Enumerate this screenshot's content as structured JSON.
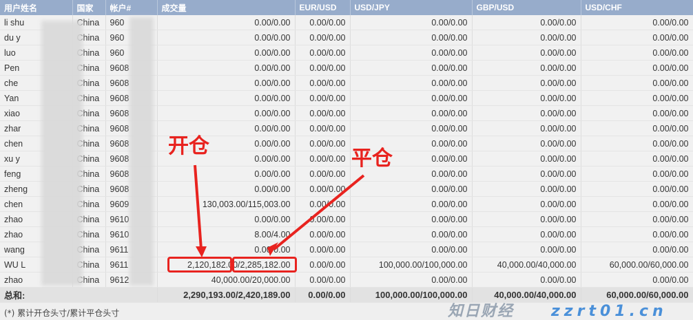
{
  "headers": [
    "用户姓名",
    "国家",
    "帐户#",
    "成交量",
    "EUR/USD",
    "USD/JPY",
    "GBP/USD",
    "USD/CHF"
  ],
  "rows": [
    [
      "li shu",
      "China",
      "960",
      "0.00/0.00",
      "0.00/0.00",
      "0.00/0.00",
      "0.00/0.00",
      "0.00/0.00"
    ],
    [
      "du y",
      "China",
      "960",
      "0.00/0.00",
      "0.00/0.00",
      "0.00/0.00",
      "0.00/0.00",
      "0.00/0.00"
    ],
    [
      "luo",
      "China",
      "960",
      "0.00/0.00",
      "0.00/0.00",
      "0.00/0.00",
      "0.00/0.00",
      "0.00/0.00"
    ],
    [
      "Pen",
      "China",
      "9608",
      "0.00/0.00",
      "0.00/0.00",
      "0.00/0.00",
      "0.00/0.00",
      "0.00/0.00"
    ],
    [
      "che",
      "China",
      "9608",
      "0.00/0.00",
      "0.00/0.00",
      "0.00/0.00",
      "0.00/0.00",
      "0.00/0.00"
    ],
    [
      "Yan",
      "China",
      "9608",
      "0.00/0.00",
      "0.00/0.00",
      "0.00/0.00",
      "0.00/0.00",
      "0.00/0.00"
    ],
    [
      "xiao",
      "China",
      "9608",
      "0.00/0.00",
      "0.00/0.00",
      "0.00/0.00",
      "0.00/0.00",
      "0.00/0.00"
    ],
    [
      "zhar",
      "China",
      "9608",
      "0.00/0.00",
      "0.00/0.00",
      "0.00/0.00",
      "0.00/0.00",
      "0.00/0.00"
    ],
    [
      "chen",
      "China",
      "9608",
      "0.00/0.00",
      "0.00/0.00",
      "0.00/0.00",
      "0.00/0.00",
      "0.00/0.00"
    ],
    [
      "xu y",
      "China",
      "9608",
      "0.00/0.00",
      "0.00/0.00",
      "0.00/0.00",
      "0.00/0.00",
      "0.00/0.00"
    ],
    [
      "feng",
      "China",
      "9608",
      "0.00/0.00",
      "0.00/0.00",
      "0.00/0.00",
      "0.00/0.00",
      "0.00/0.00"
    ],
    [
      "zheng",
      "China",
      "9608",
      "0.00/0.00",
      "0.00/0.00",
      "0.00/0.00",
      "0.00/0.00",
      "0.00/0.00"
    ],
    [
      "chen",
      "China",
      "9609",
      "130,003.00/115,003.00",
      "0.00/0.00",
      "0.00/0.00",
      "0.00/0.00",
      "0.00/0.00"
    ],
    [
      "zhao",
      "China",
      "9610",
      "0.00/0.00",
      "0.00/0.00",
      "0.00/0.00",
      "0.00/0.00",
      "0.00/0.00"
    ],
    [
      "zhao",
      "China",
      "9610",
      "8.00/4.00",
      "0.00/0.00",
      "0.00/0.00",
      "0.00/0.00",
      "0.00/0.00"
    ],
    [
      "wang",
      "China",
      "9611",
      "0.00/0.00",
      "0.00/0.00",
      "0.00/0.00",
      "0.00/0.00",
      "0.00/0.00"
    ],
    [
      "WU L",
      "China",
      "9611",
      "2,120,182.00/2,285,182.00",
      "0.00/0.00",
      "100,000.00/100,000.00",
      "40,000.00/40,000.00",
      "60,000.00/60,000.00"
    ],
    [
      "zhao",
      "China",
      "9612",
      "40,000.00/20,000.00",
      "0.00/0.00",
      "0.00/0.00",
      "0.00/0.00",
      "0.00/0.00"
    ]
  ],
  "total": {
    "label": "总和:",
    "values": [
      "2,290,193.00/2,420,189.00",
      "0.00/0.00",
      "100,000.00/100,000.00",
      "40,000.00/40,000.00",
      "60,000.00/60,000.00"
    ]
  },
  "footnote": "(*) 累计开仓头寸/累计平仓头寸",
  "annotations": {
    "open": "开仓",
    "close": "平仓",
    "color": "#e8231f"
  },
  "watermark": {
    "logo": "知日财经",
    "url": "zzrt01.cn"
  }
}
